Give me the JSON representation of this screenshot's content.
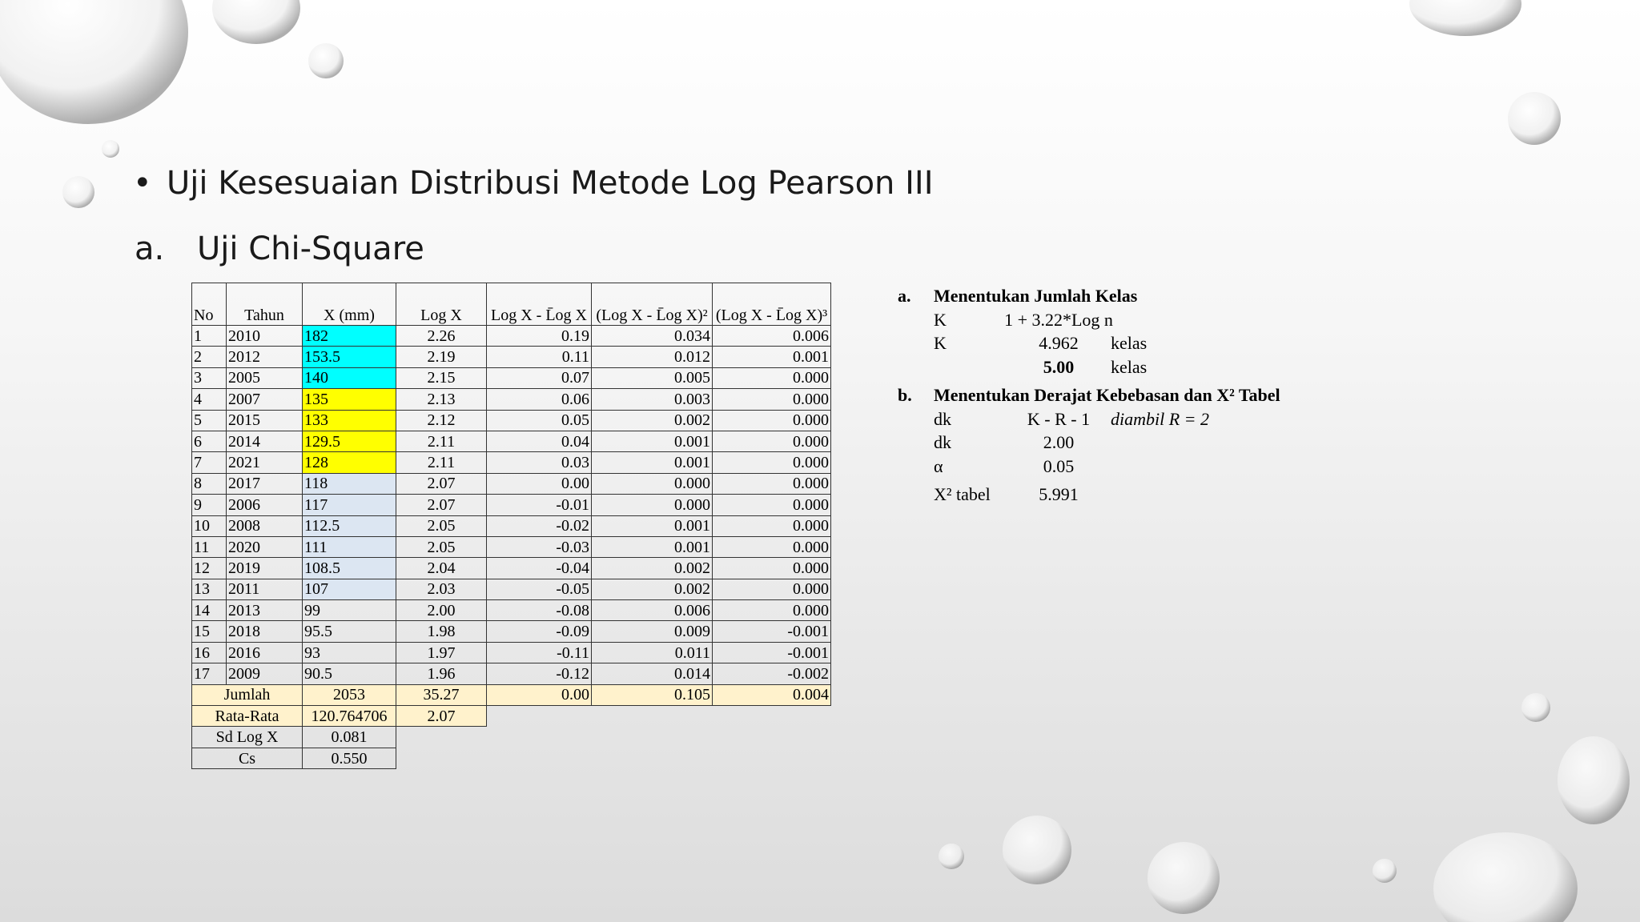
{
  "slide": {
    "bullet": "Uji Kesesuaian Distribusi Metode Log Pearson III",
    "heading_marker": "a.",
    "heading": "Uji Chi-Square"
  },
  "table": {
    "headers": [
      "No",
      "Tahun",
      "X (mm)",
      "Log X",
      "Log X - L̄og X",
      "(Log X - L̄og X)²",
      "(Log X - L̄og X)³"
    ],
    "rows": [
      [
        "1",
        "2010",
        "182",
        "2.26",
        "0.19",
        "0.034",
        "0.006"
      ],
      [
        "2",
        "2012",
        "153.5",
        "2.19",
        "0.11",
        "0.012",
        "0.001"
      ],
      [
        "3",
        "2005",
        "140",
        "2.15",
        "0.07",
        "0.005",
        "0.000"
      ],
      [
        "4",
        "2007",
        "135",
        "2.13",
        "0.06",
        "0.003",
        "0.000"
      ],
      [
        "5",
        "2015",
        "133",
        "2.12",
        "0.05",
        "0.002",
        "0.000"
      ],
      [
        "6",
        "2014",
        "129.5",
        "2.11",
        "0.04",
        "0.001",
        "0.000"
      ],
      [
        "7",
        "2021",
        "128",
        "2.11",
        "0.03",
        "0.001",
        "0.000"
      ],
      [
        "8",
        "2017",
        "118",
        "2.07",
        "0.00",
        "0.000",
        "0.000"
      ],
      [
        "9",
        "2006",
        "117",
        "2.07",
        "-0.01",
        "0.000",
        "0.000"
      ],
      [
        "10",
        "2008",
        "112.5",
        "2.05",
        "-0.02",
        "0.001",
        "0.000"
      ],
      [
        "11",
        "2020",
        "111",
        "2.05",
        "-0.03",
        "0.001",
        "0.000"
      ],
      [
        "12",
        "2019",
        "108.5",
        "2.04",
        "-0.04",
        "0.002",
        "0.000"
      ],
      [
        "13",
        "2011",
        "107",
        "2.03",
        "-0.05",
        "0.002",
        "0.000"
      ],
      [
        "14",
        "2013",
        "99",
        "2.00",
        "-0.08",
        "0.006",
        "0.000"
      ],
      [
        "15",
        "2018",
        "95.5",
        "1.98",
        "-0.09",
        "0.009",
        "-0.001"
      ],
      [
        "16",
        "2016",
        "93",
        "1.97",
        "-0.11",
        "0.011",
        "-0.001"
      ],
      [
        "17",
        "2009",
        "90.5",
        "1.96",
        "-0.12",
        "0.014",
        "-0.002"
      ]
    ],
    "x_colors": [
      "#00ffff",
      "#00ffff",
      "#00ffff",
      "#ffff00",
      "#ffff00",
      "#ffff00",
      "#ffff00",
      "#dce6f2",
      "#dce6f2",
      "#dce6f2",
      "#dce6f2",
      "#dce6f2",
      "#dce6f2",
      null,
      null,
      null,
      null
    ],
    "summary": [
      {
        "label": "Jumlah",
        "values": [
          "2053",
          "35.27",
          "0.00",
          "0.105",
          "0.004"
        ],
        "color": "#fff2cc"
      },
      {
        "label": "Rata-Rata",
        "values": [
          "120.764706",
          "2.07"
        ],
        "color": "#fff2cc"
      },
      {
        "label": "Sd Log X",
        "values": [
          "0.081"
        ]
      },
      {
        "label": "Cs",
        "values": [
          "0.550"
        ]
      }
    ]
  },
  "notes": {
    "sections": [
      {
        "marker": "a.",
        "title": "Menentukan Jumlah Kelas",
        "lines": [
          {
            "label": "K",
            "value": "1 + 3.22*Log n"
          },
          {
            "label": "K",
            "value": "4.962",
            "unit": "kelas"
          },
          {
            "value": "5.00",
            "unit": "kelas",
            "bold": true
          }
        ]
      },
      {
        "marker": "b.",
        "title": "Menentukan Derajat Kebebasan dan X² Tabel",
        "lines": [
          {
            "label": "dk",
            "value": "K - R - 1",
            "note": "diambil R = 2"
          },
          {
            "label": "dk",
            "value": "2.00"
          },
          {
            "label": "α",
            "value": "0.05"
          },
          {
            "label": "X² tabel",
            "value": "5.991"
          }
        ]
      }
    ]
  }
}
